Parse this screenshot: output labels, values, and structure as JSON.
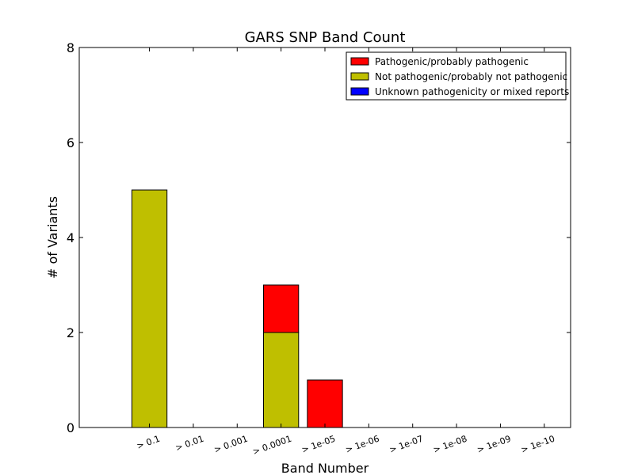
{
  "chart_data": {
    "type": "bar",
    "stacked": true,
    "title": "GARS SNP Band Count",
    "xlabel": "Band Number",
    "ylabel": "# of Variants",
    "ylim": [
      0,
      8
    ],
    "yticks": [
      0,
      2,
      4,
      6,
      8
    ],
    "categories": [
      "> 0.1",
      "> 0.01",
      "> 0.001",
      "> 0.0001",
      "> 1e-05",
      "> 1e-06",
      "> 1e-07",
      "> 1e-08",
      "> 1e-09",
      "> 1e-10"
    ],
    "series": [
      {
        "name": "Pathogenic/probably pathogenic",
        "color": "#ff0000",
        "values": [
          0,
          0,
          0,
          1,
          1,
          0,
          0,
          0,
          0,
          0
        ]
      },
      {
        "name": "Not pathogenic/probably not pathogenic",
        "color": "#bfbf00",
        "values": [
          5,
          0,
          0,
          2,
          0,
          0,
          0,
          0,
          0,
          0
        ]
      },
      {
        "name": "Unknown pathogenicity or mixed reports",
        "color": "#0000ff",
        "values": [
          0,
          0,
          0,
          0,
          0,
          0,
          0,
          0,
          0,
          0
        ]
      }
    ],
    "stack_order": [
      1,
      0,
      2
    ],
    "legend_placement": "top-right",
    "grid": false
  }
}
